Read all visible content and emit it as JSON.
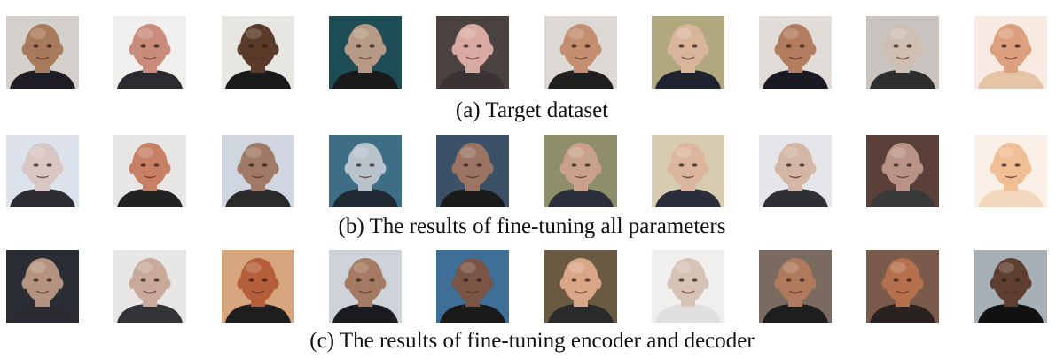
{
  "figure": {
    "panels": [
      {
        "caption": "(a) Target dataset",
        "faces": [
          {
            "bg": "#d4d1cc",
            "skin": "#a87a5c",
            "shirt": "#1e1e24"
          },
          {
            "bg": "#f1efee",
            "skin": "#c98c7a",
            "shirt": "#2b2b30"
          },
          {
            "bg": "#e8e6e3",
            "skin": "#5a3a28",
            "shirt": "#1a1a1a"
          },
          {
            "bg": "#1e4d55",
            "skin": "#b79a86",
            "shirt": "#1a1a1a"
          },
          {
            "bg": "#4a4240",
            "skin": "#d9aaa2",
            "shirt": "#3a3333"
          },
          {
            "bg": "#dcd8d4",
            "skin": "#c48e70",
            "shirt": "#202020"
          },
          {
            "bg": "#b2a880",
            "skin": "#d9b59c",
            "shirt": "#1f2430"
          },
          {
            "bg": "#e2dcd8",
            "skin": "#b27c5e",
            "shirt": "#1a1a22"
          },
          {
            "bg": "#c9c4c0",
            "skin": "#cfbfb2",
            "shirt": "#2e2e2e"
          },
          {
            "bg": "#f7ebe3",
            "skin": "#dca07e",
            "shirt": "#e6c4a6"
          }
        ]
      },
      {
        "caption": "(b) The results of fine-tuning all parameters",
        "faces": [
          {
            "bg": "#dde3ec",
            "skin": "#d8c6c4",
            "shirt": "#2b2b30"
          },
          {
            "bg": "#e9e7e5",
            "skin": "#c78066",
            "shirt": "#222222"
          },
          {
            "bg": "#cfd6e0",
            "skin": "#a07a66",
            "shirt": "#2a2a2a"
          },
          {
            "bg": "#3e6e85",
            "skin": "#b8c3cc",
            "shirt": "#1f2a33"
          },
          {
            "bg": "#3b5168",
            "skin": "#9b7464",
            "shirt": "#1b1b1b"
          },
          {
            "bg": "#8e8f6a",
            "skin": "#c9a08a",
            "shirt": "#2a2f3a"
          },
          {
            "bg": "#d8ccb0",
            "skin": "#dcb69c",
            "shirt": "#2a2e3a"
          },
          {
            "bg": "#e5e6e9",
            "skin": "#d3b6a4",
            "shirt": "#2e3036"
          },
          {
            "bg": "#5a4038",
            "skin": "#b99486",
            "shirt": "#3a3a3a"
          },
          {
            "bg": "#faf0e8",
            "skin": "#f0bf95",
            "shirt": "#f3d8bd"
          }
        ]
      },
      {
        "caption": "(c) The results of fine-tuning encoder and decoder",
        "faces": [
          {
            "bg": "#2a2d33",
            "skin": "#b49480",
            "shirt": "#2a2a30"
          },
          {
            "bg": "#e8e6e4",
            "skin": "#c9aa9a",
            "shirt": "#333338"
          },
          {
            "bg": "#d7a67f",
            "skin": "#b55e3a",
            "shirt": "#1e1e1e"
          },
          {
            "bg": "#cdd3d8",
            "skin": "#a57a62",
            "shirt": "#1c1c20"
          },
          {
            "bg": "#3f6e96",
            "skin": "#7a5444",
            "shirt": "#1a1a1a"
          },
          {
            "bg": "#6a5a42",
            "skin": "#d9a688",
            "shirt": "#2a2a2a"
          },
          {
            "bg": "#f0efee",
            "skin": "#d7c2b6",
            "shirt": "#e0dede"
          },
          {
            "bg": "#7a6a60",
            "skin": "#b07a5c",
            "shirt": "#1e1e1e"
          },
          {
            "bg": "#7a5a4a",
            "skin": "#b5704e",
            "shirt": "#2a2220"
          },
          {
            "bg": "#a7b0b6",
            "skin": "#5e3e2e",
            "shirt": "#111111"
          }
        ]
      }
    ]
  }
}
